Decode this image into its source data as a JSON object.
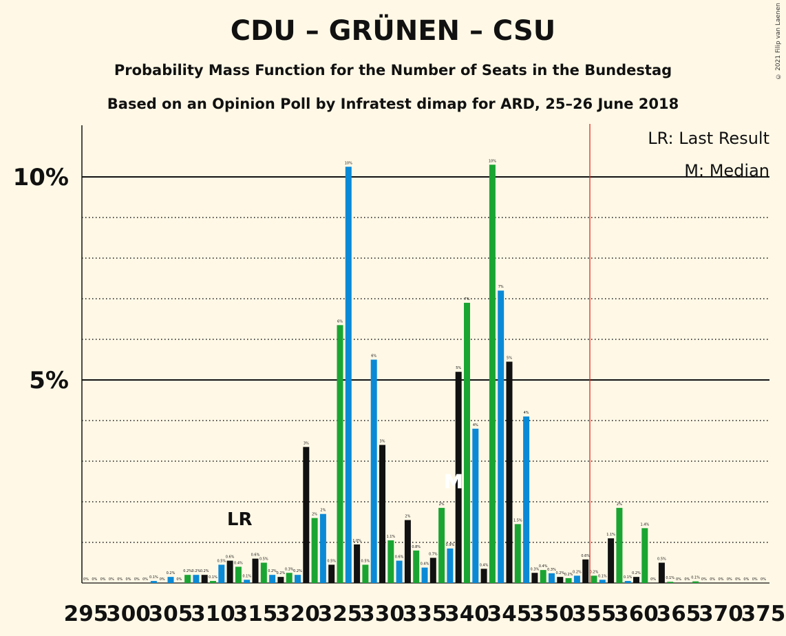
{
  "title": "CDU – GRÜNEN – CSU",
  "subtitle": "Probability Mass Function for the Number of Seats in the Bundestag",
  "subtitle2": "Based on an Opinion Poll by Infratest dimap for ARD, 25–26 June 2018",
  "copyright": "© 2021 Filip van Laenen",
  "legend": {
    "lr": "LR: Last Result",
    "median": "M: Median"
  },
  "markers": {
    "lr_label": "LR",
    "median_label": "M"
  },
  "colors": {
    "background": "#FFF8E6",
    "black": "#111111",
    "green": "#1AA532",
    "blue": "#0A8AD6",
    "majority_line": "#E0281E"
  },
  "chart_data": {
    "type": "bar",
    "ylabel_ticks": [
      "5%",
      "10%"
    ],
    "ylim": [
      0,
      11.2
    ],
    "x_tick_labels": [
      "295",
      "300",
      "305",
      "310",
      "315",
      "320",
      "325",
      "330",
      "335",
      "340",
      "345",
      "350",
      "355",
      "360",
      "365",
      "370",
      "375"
    ],
    "last_result_seat": 309,
    "median_seat": 338,
    "majority_seat": 355,
    "bars": [
      {
        "seat": 295,
        "value": 0,
        "label": "0%",
        "color": "black"
      },
      {
        "seat": 296,
        "value": 0,
        "label": "0%",
        "color": "green"
      },
      {
        "seat": 297,
        "value": 0,
        "label": "0%",
        "color": "blue"
      },
      {
        "seat": 298,
        "value": 0,
        "label": "0%",
        "color": "black"
      },
      {
        "seat": 299,
        "value": 0,
        "label": "0%",
        "color": "green"
      },
      {
        "seat": 300,
        "value": 0,
        "label": "0%",
        "color": "blue"
      },
      {
        "seat": 301,
        "value": 0,
        "label": "0%",
        "color": "black"
      },
      {
        "seat": 302,
        "value": 0,
        "label": "0%",
        "color": "green"
      },
      {
        "seat": 303,
        "value": 0.05,
        "label": "0.1%",
        "color": "blue"
      },
      {
        "seat": 304,
        "value": 0,
        "label": "0%",
        "color": "black"
      },
      {
        "seat": 305,
        "value": 0.15,
        "label": "0.2%",
        "color": "blue"
      },
      {
        "seat": 306,
        "value": 0,
        "label": "0%",
        "color": "black"
      },
      {
        "seat": 307,
        "value": 0.2,
        "label": "0.2%",
        "color": "green"
      },
      {
        "seat": 308,
        "value": 0.2,
        "label": "0.2%",
        "color": "blue"
      },
      {
        "seat": 309,
        "value": 0.2,
        "label": "0.2%",
        "color": "black"
      },
      {
        "seat": 310,
        "value": 0.05,
        "label": "0.1%",
        "color": "green"
      },
      {
        "seat": 311,
        "value": 0.45,
        "label": "0.5%",
        "color": "blue"
      },
      {
        "seat": 312,
        "value": 0.55,
        "label": "0.6%",
        "color": "black"
      },
      {
        "seat": 313,
        "value": 0.4,
        "label": "0.4%",
        "color": "green"
      },
      {
        "seat": 314,
        "value": 0.08,
        "label": "0.1%",
        "color": "blue"
      },
      {
        "seat": 315,
        "value": 0.6,
        "label": "0.6%",
        "color": "black"
      },
      {
        "seat": 316,
        "value": 0.5,
        "label": "0.5%",
        "color": "green"
      },
      {
        "seat": 317,
        "value": 0.2,
        "label": "0.2%",
        "color": "blue"
      },
      {
        "seat": 318,
        "value": 0.15,
        "label": "0.2%",
        "color": "black"
      },
      {
        "seat": 319,
        "value": 0.25,
        "label": "0.3%",
        "color": "green"
      },
      {
        "seat": 320,
        "value": 0.2,
        "label": "0.2%",
        "color": "blue"
      },
      {
        "seat": 321,
        "value": 3.35,
        "label": "3%",
        "color": "black"
      },
      {
        "seat": 322,
        "value": 1.6,
        "label": "2%",
        "color": "green"
      },
      {
        "seat": 323,
        "value": 1.7,
        "label": "2%",
        "color": "blue"
      },
      {
        "seat": 324,
        "value": 0.45,
        "label": "0.5%",
        "color": "black"
      },
      {
        "seat": 325,
        "value": 6.35,
        "label": "6%",
        "color": "green"
      },
      {
        "seat": 326,
        "value": 10.25,
        "label": "10%",
        "color": "blue"
      },
      {
        "seat": 327,
        "value": 0.95,
        "label": "1.0%",
        "color": "black"
      },
      {
        "seat": 328,
        "value": 0.45,
        "label": "0.5%",
        "color": "green"
      },
      {
        "seat": 329,
        "value": 5.5,
        "label": "6%",
        "color": "blue"
      },
      {
        "seat": 330,
        "value": 3.4,
        "label": "3%",
        "color": "black"
      },
      {
        "seat": 331,
        "value": 1.05,
        "label": "1.1%",
        "color": "green"
      },
      {
        "seat": 332,
        "value": 0.55,
        "label": "0.6%",
        "color": "blue"
      },
      {
        "seat": 333,
        "value": 1.55,
        "label": "2%",
        "color": "black"
      },
      {
        "seat": 334,
        "value": 0.8,
        "label": "0.8%",
        "color": "green"
      },
      {
        "seat": 335,
        "value": 0.38,
        "label": "0.4%",
        "color": "blue"
      },
      {
        "seat": 336,
        "value": 0.62,
        "label": "0.7%",
        "color": "black"
      },
      {
        "seat": 337,
        "value": 1.85,
        "label": "2%",
        "color": "green"
      },
      {
        "seat": 338,
        "value": 0.85,
        "label": "0.9%",
        "color": "blue"
      },
      {
        "seat": 339,
        "value": 5.2,
        "label": "5%",
        "color": "black"
      },
      {
        "seat": 340,
        "value": 6.9,
        "label": "7%",
        "color": "green"
      },
      {
        "seat": 341,
        "value": 3.8,
        "label": "4%",
        "color": "blue"
      },
      {
        "seat": 342,
        "value": 0.35,
        "label": "0.4%",
        "color": "black"
      },
      {
        "seat": 343,
        "value": 10.3,
        "label": "10%",
        "color": "green"
      },
      {
        "seat": 344,
        "value": 7.2,
        "label": "7%",
        "color": "blue"
      },
      {
        "seat": 345,
        "value": 5.45,
        "label": "5%",
        "color": "black"
      },
      {
        "seat": 346,
        "value": 1.45,
        "label": "1.5%",
        "color": "green"
      },
      {
        "seat": 347,
        "value": 4.1,
        "label": "4%",
        "color": "blue"
      },
      {
        "seat": 348,
        "value": 0.25,
        "label": "0.3%",
        "color": "black"
      },
      {
        "seat": 349,
        "value": 0.32,
        "label": "0.4%",
        "color": "green"
      },
      {
        "seat": 350,
        "value": 0.24,
        "label": "0.3%",
        "color": "blue"
      },
      {
        "seat": 351,
        "value": 0.15,
        "label": "0.2%",
        "color": "black"
      },
      {
        "seat": 352,
        "value": 0.12,
        "label": "0.2%",
        "color": "green"
      },
      {
        "seat": 353,
        "value": 0.18,
        "label": "0.2%",
        "color": "blue"
      },
      {
        "seat": 354,
        "value": 0.58,
        "label": "0.6%",
        "color": "black"
      },
      {
        "seat": 355,
        "value": 0.18,
        "label": "0.2%",
        "color": "green"
      },
      {
        "seat": 356,
        "value": 0.08,
        "label": "0.1%",
        "color": "blue"
      },
      {
        "seat": 357,
        "value": 1.1,
        "label": "1.1%",
        "color": "black"
      },
      {
        "seat": 358,
        "value": 1.85,
        "label": "2%",
        "color": "green"
      },
      {
        "seat": 359,
        "value": 0.05,
        "label": "0.1%",
        "color": "blue"
      },
      {
        "seat": 360,
        "value": 0.15,
        "label": "0.2%",
        "color": "black"
      },
      {
        "seat": 361,
        "value": 1.35,
        "label": "1.4%",
        "color": "green"
      },
      {
        "seat": 362,
        "value": 0,
        "label": "0%",
        "color": "blue"
      },
      {
        "seat": 363,
        "value": 0.5,
        "label": "0.5%",
        "color": "black"
      },
      {
        "seat": 364,
        "value": 0.03,
        "label": "0.1%",
        "color": "green"
      },
      {
        "seat": 365,
        "value": 0,
        "label": "0%",
        "color": "blue"
      },
      {
        "seat": 366,
        "value": 0,
        "label": "0%",
        "color": "black"
      },
      {
        "seat": 367,
        "value": 0.04,
        "label": "0.1%",
        "color": "green"
      },
      {
        "seat": 368,
        "value": 0,
        "label": "0%",
        "color": "blue"
      },
      {
        "seat": 369,
        "value": 0,
        "label": "0%",
        "color": "black"
      },
      {
        "seat": 370,
        "value": 0,
        "label": "0%",
        "color": "green"
      },
      {
        "seat": 371,
        "value": 0,
        "label": "0%",
        "color": "blue"
      },
      {
        "seat": 372,
        "value": 0,
        "label": "0%",
        "color": "black"
      },
      {
        "seat": 373,
        "value": 0,
        "label": "0%",
        "color": "green"
      },
      {
        "seat": 374,
        "value": 0,
        "label": "0%",
        "color": "blue"
      },
      {
        "seat": 375,
        "value": 0,
        "label": "0%",
        "color": "black"
      }
    ]
  }
}
